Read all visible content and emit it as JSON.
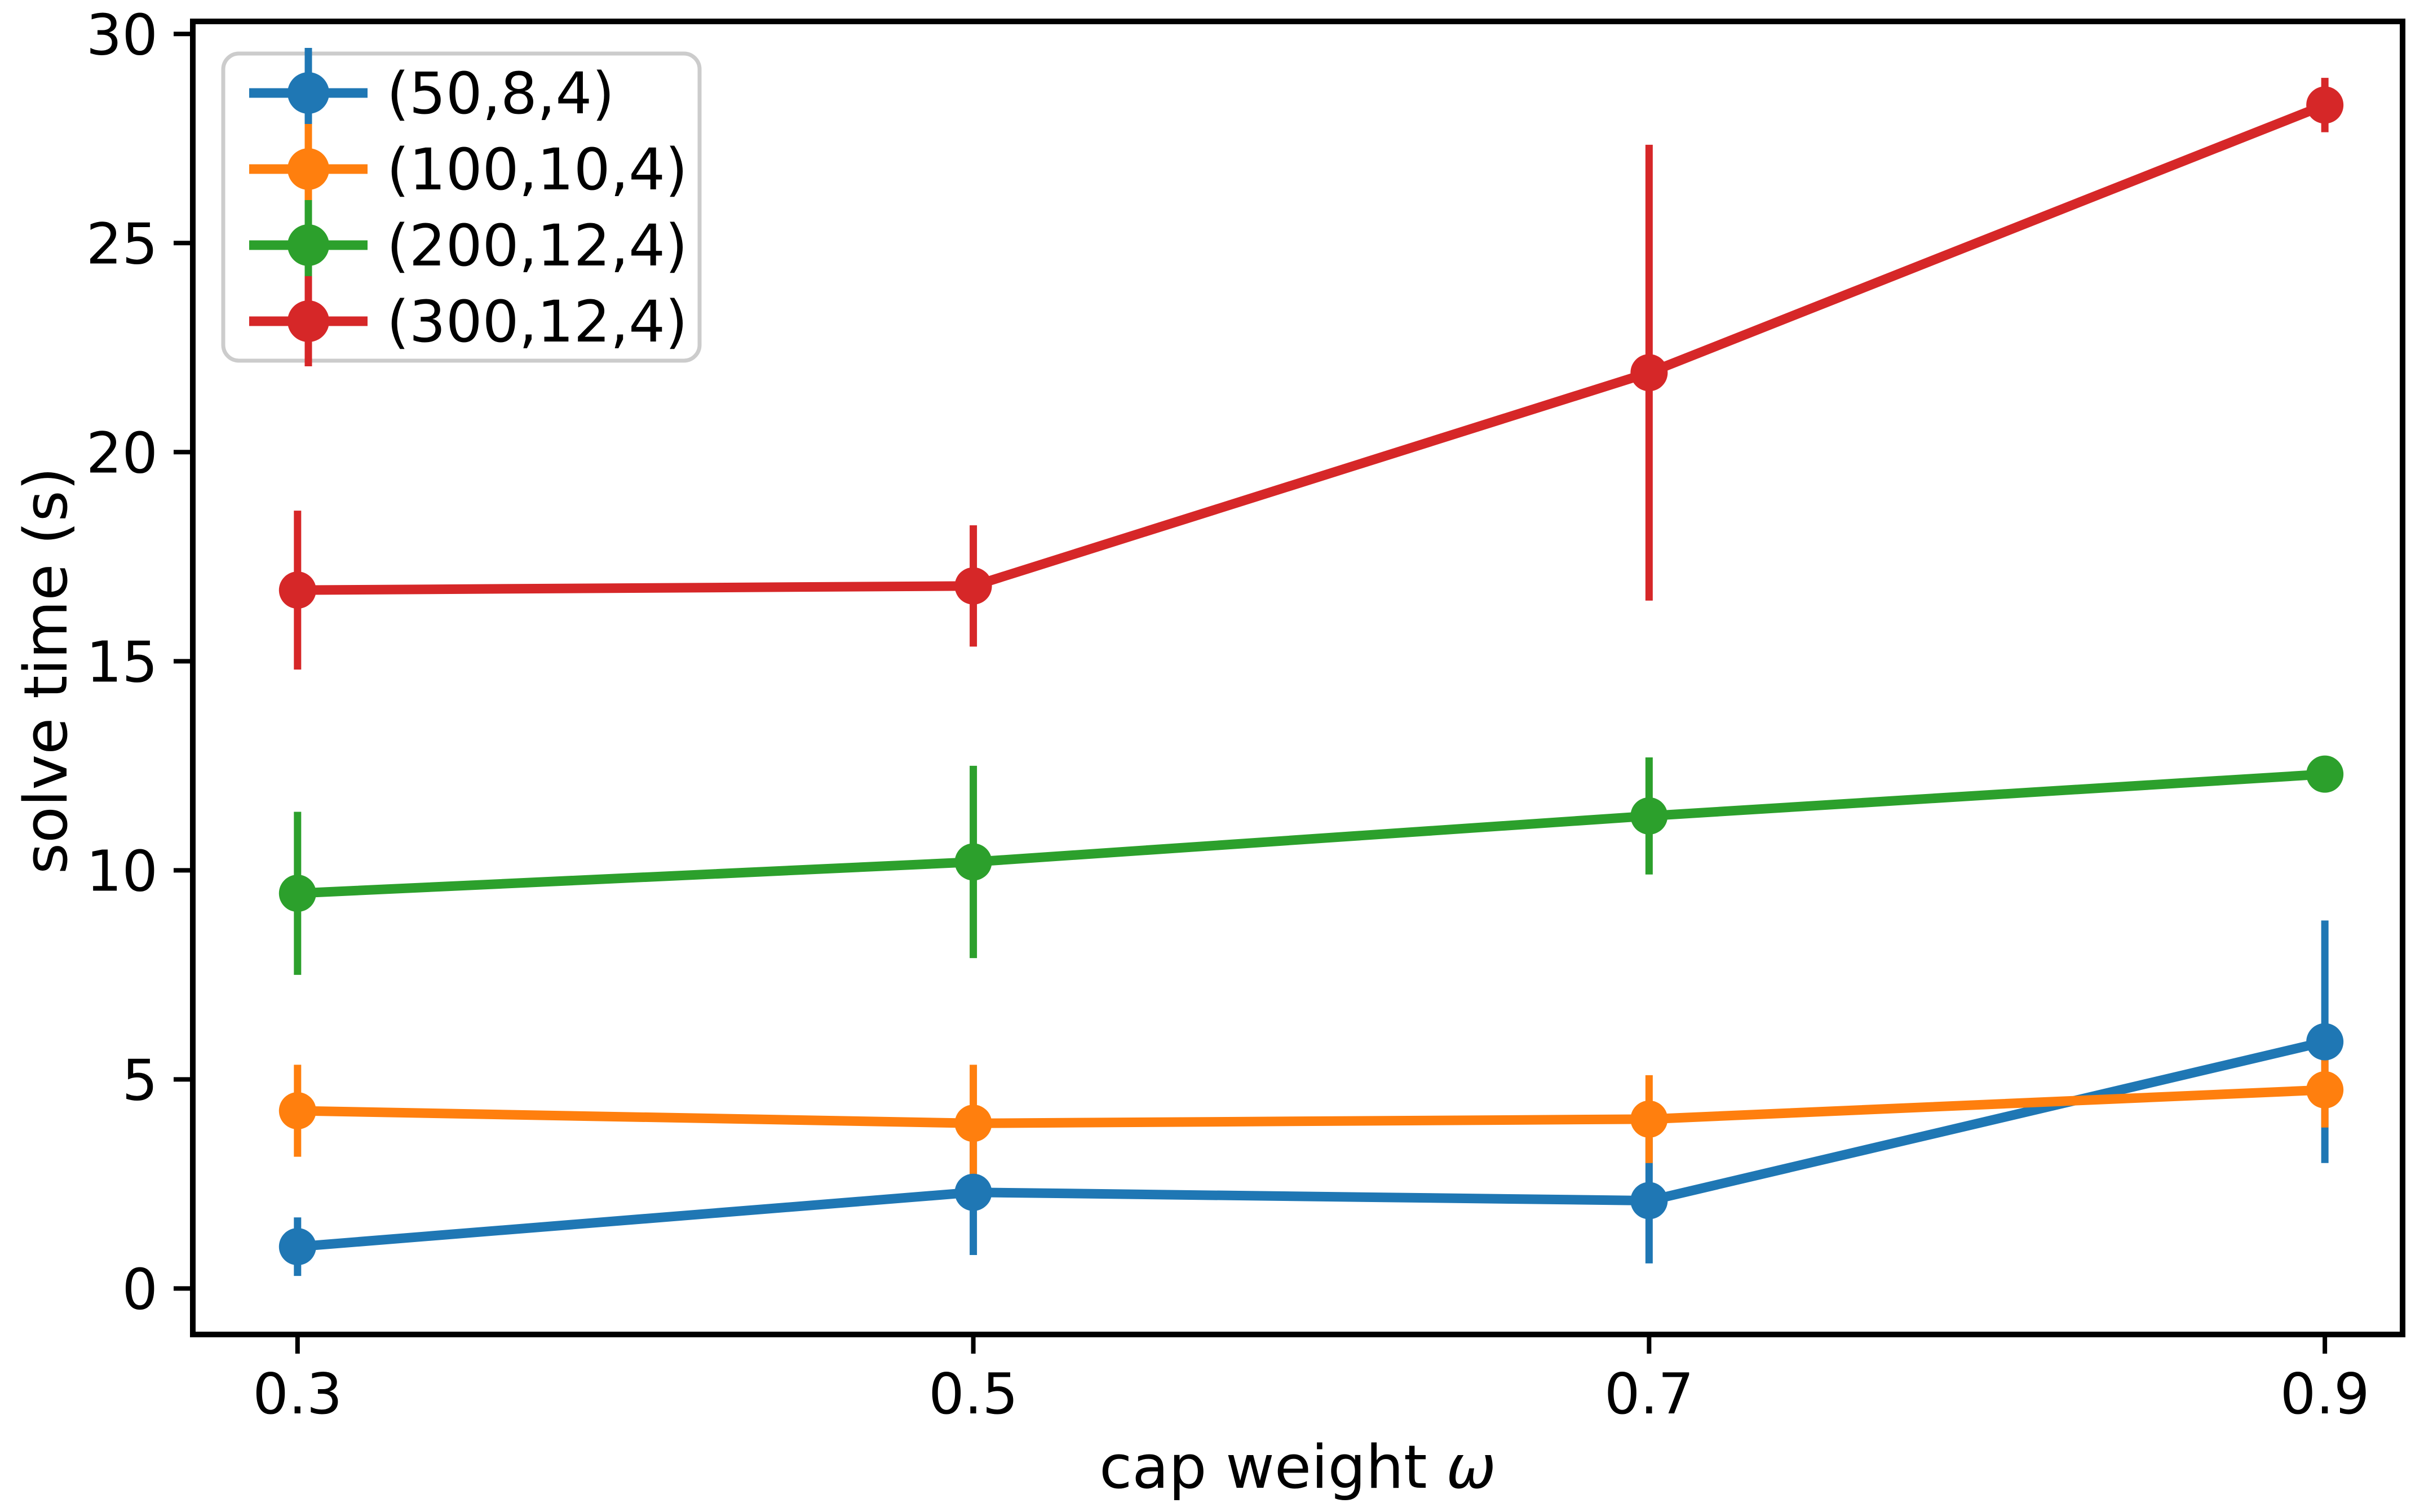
{
  "figure": {
    "background": "#ffffff",
    "text_color": "#000000",
    "spine_color": "#000000",
    "legend_border_color": "#cccccc"
  },
  "chart_data": {
    "type": "line",
    "subtype": "errorbar",
    "title": "",
    "xlabel": "cap weight ω",
    "xlabel_parts": [
      {
        "text": "cap weight ",
        "italic": false
      },
      {
        "text": "ω",
        "italic": true
      }
    ],
    "ylabel": "solve time (s)",
    "x": [
      0.3,
      0.5,
      0.7,
      0.9
    ],
    "xtick_labels": [
      "0.3",
      "0.5",
      "0.7",
      "0.9"
    ],
    "ytick_values": [
      0,
      5,
      10,
      15,
      20,
      25,
      30
    ],
    "ytick_labels": [
      "0",
      "5",
      "10",
      "15",
      "20",
      "25",
      "30"
    ],
    "xlim": [
      0.269,
      0.923
    ],
    "ylim": [
      -1.1,
      30.3
    ],
    "grid": false,
    "legend_position": "upper-left",
    "series": [
      {
        "name": "(50,8,4)",
        "color": "#1f77b4",
        "values": [
          1.0,
          2.3,
          2.1,
          5.9
        ],
        "yerr": [
          0.7,
          1.5,
          1.5,
          2.9
        ]
      },
      {
        "name": "(100,10,4)",
        "color": "#ff7f0e",
        "values": [
          4.25,
          3.95,
          4.05,
          4.75
        ],
        "yerr": [
          1.1,
          1.4,
          1.05,
          0.9
        ]
      },
      {
        "name": "(200,12,4)",
        "color": "#2ca02c",
        "values": [
          9.45,
          10.2,
          11.3,
          12.3
        ],
        "yerr": [
          1.95,
          2.3,
          1.4,
          0.2
        ]
      },
      {
        "name": "(300,12,4)",
        "color": "#d62728",
        "values": [
          16.7,
          16.8,
          21.9,
          28.3
        ],
        "yerr": [
          1.9,
          1.45,
          5.45,
          0.65
        ]
      }
    ]
  }
}
